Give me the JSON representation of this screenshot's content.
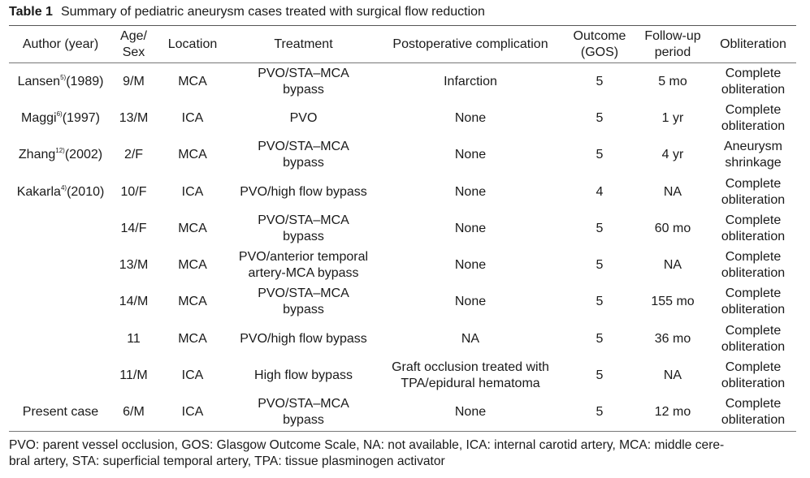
{
  "caption": {
    "label": "Table 1",
    "text": "Summary of pediatric aneurysm cases treated with surgical flow reduction"
  },
  "headers": [
    "Author (year)",
    "Age/\nSex",
    "Location",
    "Treatment",
    "Postoperative complication",
    "Outcome\n(GOS)",
    "Follow-up\nperiod",
    "Obliteration"
  ],
  "rows": [
    {
      "author": "Lansen",
      "ref": "5)",
      "year": "(1989)",
      "age_sex": "9/M",
      "location": "MCA",
      "treatment": "PVO/STA–MCA\nbypass",
      "complication": "Infarction",
      "outcome": "5",
      "followup": "5 mo",
      "obliteration": "Complete\nobliteration"
    },
    {
      "author": "Maggi",
      "ref": "6)",
      "year": "(1997)",
      "age_sex": "13/M",
      "location": "ICA",
      "treatment": "PVO",
      "complication": "None",
      "outcome": "5",
      "followup": "1 yr",
      "obliteration": "Complete\nobliteration"
    },
    {
      "author": "Zhang",
      "ref": "12)",
      "year": "(2002)",
      "age_sex": "2/F",
      "location": "MCA",
      "treatment": "PVO/STA–MCA\nbypass",
      "complication": "None",
      "outcome": "5",
      "followup": "4 yr",
      "obliteration": "Aneurysm\nshrinkage"
    },
    {
      "author": "Kakarla",
      "ref": "4)",
      "year": "(2010)",
      "age_sex": "10/F",
      "location": "ICA",
      "treatment": "PVO/high flow bypass",
      "complication": "None",
      "outcome": "4",
      "followup": "NA",
      "obliteration": "Complete\nobliteration"
    },
    {
      "author": "",
      "ref": "",
      "year": "",
      "age_sex": "14/F",
      "location": "MCA",
      "treatment": "PVO/STA–MCA\nbypass",
      "complication": "None",
      "outcome": "5",
      "followup": "60 mo",
      "obliteration": "Complete\nobliteration"
    },
    {
      "author": "",
      "ref": "",
      "year": "",
      "age_sex": "13/M",
      "location": "MCA",
      "treatment": "PVO/anterior temporal\nartery-MCA bypass",
      "complication": "None",
      "outcome": "5",
      "followup": "NA",
      "obliteration": "Complete\nobliteration"
    },
    {
      "author": "",
      "ref": "",
      "year": "",
      "age_sex": "14/M",
      "location": "MCA",
      "treatment": "PVO/STA–MCA\nbypass",
      "complication": "None",
      "outcome": "5",
      "followup": "155 mo",
      "obliteration": "Complete\nobliteration"
    },
    {
      "author": "",
      "ref": "",
      "year": "",
      "age_sex": "11",
      "location": "MCA",
      "treatment": "PVO/high flow bypass",
      "complication": "NA",
      "outcome": "5",
      "followup": "36 mo",
      "obliteration": "Complete\nobliteration"
    },
    {
      "author": "",
      "ref": "",
      "year": "",
      "age_sex": "11/M",
      "location": "ICA",
      "treatment": "High flow bypass",
      "complication": "Graft occlusion treated with\nTPA/epidural hematoma",
      "outcome": "5",
      "followup": "NA",
      "obliteration": "Complete\nobliteration"
    },
    {
      "author": "Present case",
      "ref": "",
      "year": "",
      "age_sex": "6/M",
      "location": "ICA",
      "treatment": "PVO/STA–MCA\nbypass",
      "complication": "None",
      "outcome": "5",
      "followup": "12 mo",
      "obliteration": "Complete\nobliteration"
    }
  ],
  "footnote": [
    "PVO: parent vessel occlusion, GOS: Glasgow Outcome Scale, NA: not available, ICA: internal carotid artery, MCA: middle cere-",
    "bral artery, STA: superficial temporal artery, TPA: tissue plasminogen activator"
  ]
}
